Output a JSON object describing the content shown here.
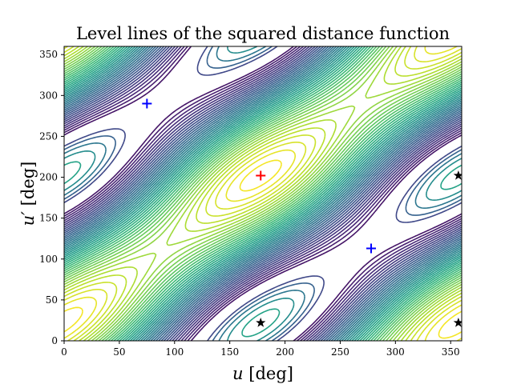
{
  "chart_data": {
    "type": "contour",
    "title": "Level lines of the squared distance function",
    "xlabel_var": "u",
    "xlabel_unit": "[deg]",
    "ylabel_var": "u′",
    "ylabel_unit": "[deg]",
    "xlim": [
      0,
      360
    ],
    "ylim": [
      0,
      360
    ],
    "xticks": [
      "0",
      "50",
      "100",
      "150",
      "200",
      "250",
      "300",
      "350"
    ],
    "yticks": [
      "0",
      "50",
      "100",
      "150",
      "200",
      "250",
      "300",
      "350"
    ],
    "colormap": "viridis",
    "grid": false,
    "markers": [
      {
        "kind": "plus",
        "color": "#0000ff",
        "x": 75,
        "y": 290
      },
      {
        "kind": "plus",
        "color": "#0000ff",
        "x": 278,
        "y": 113
      },
      {
        "kind": "plus",
        "color": "#ff0000",
        "x": 178,
        "y": 202
      },
      {
        "kind": "star",
        "color": "#000000",
        "x": 178,
        "y": 22
      },
      {
        "kind": "star",
        "color": "#000000",
        "x": 357,
        "y": 202
      },
      {
        "kind": "star",
        "color": "#000000",
        "x": 357,
        "y": 22
      }
    ]
  }
}
